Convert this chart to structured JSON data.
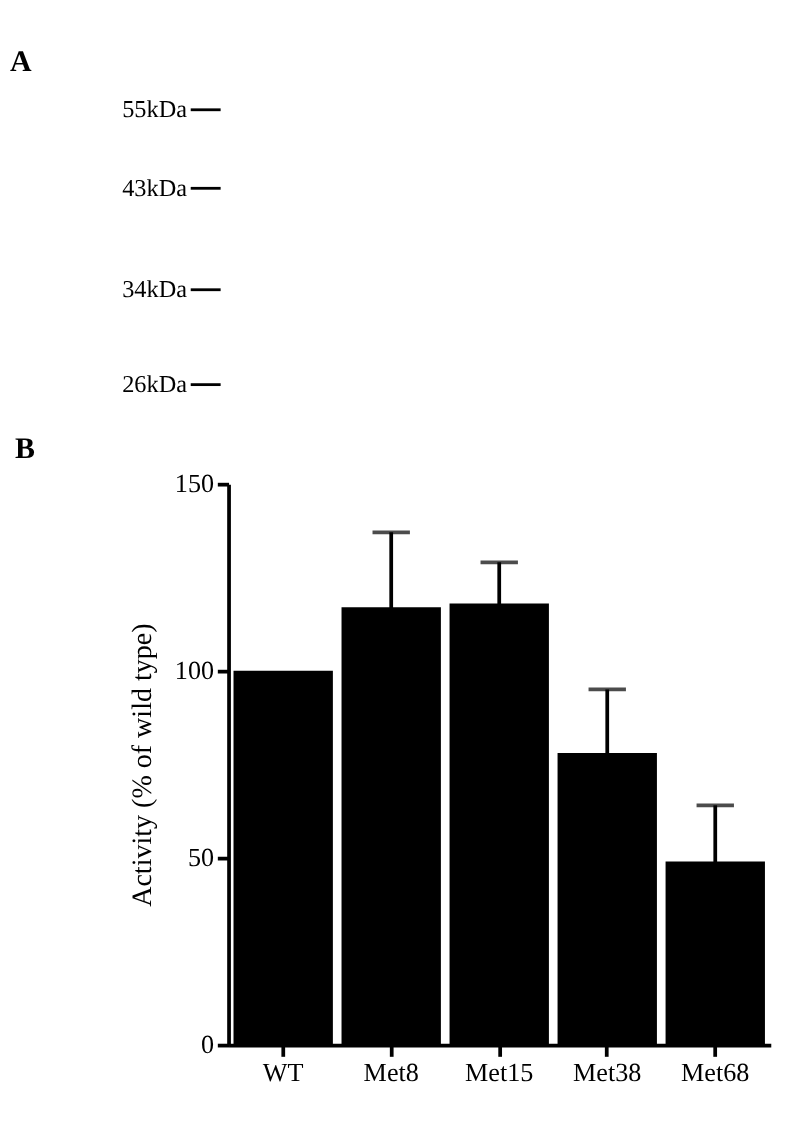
{
  "chart_data": [
    {
      "type": "other",
      "title": "A",
      "annotations": [
        "55kDa",
        "43kDa",
        "34kDa",
        "26kDa"
      ]
    },
    {
      "type": "bar",
      "title": "B",
      "ylabel": "Activity (% of wild type)",
      "categories": [
        "WT",
        "Met8",
        "Met15",
        "Met38",
        "Met68"
      ],
      "values": [
        100,
        117,
        118,
        78,
        49
      ],
      "errors": [
        null,
        20,
        11,
        17,
        15
      ],
      "color": "#000000",
      "ylim": [
        0,
        150
      ],
      "yticks": [
        0,
        50,
        100,
        150
      ],
      "grid": false
    }
  ]
}
